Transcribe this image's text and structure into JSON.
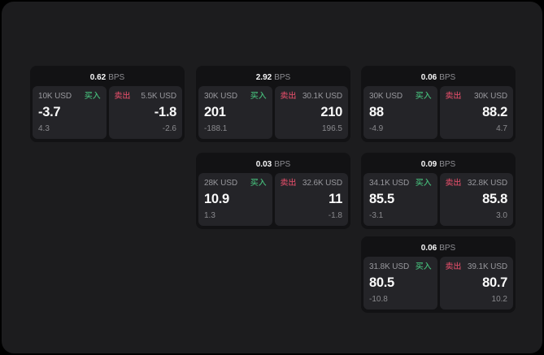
{
  "labels": {
    "bps": "BPS",
    "buy": "买入",
    "sell": "卖出"
  },
  "colors": {
    "buy_green": "#45b878",
    "sell_red": "#d04a63"
  },
  "cards": [
    {
      "col": 0,
      "row": 0,
      "bps": "0.62",
      "buy": {
        "amount": "10K USD",
        "price": "-3.7",
        "delta": "4.3"
      },
      "sell": {
        "amount": "5.5K USD",
        "price": "-1.8",
        "delta": "-2.6"
      }
    },
    {
      "col": 1,
      "row": 0,
      "bps": "2.92",
      "buy": {
        "amount": "30K USD",
        "price": "201",
        "delta": "-188.1"
      },
      "sell": {
        "amount": "30.1K USD",
        "price": "210",
        "delta": "196.5"
      }
    },
    {
      "col": 2,
      "row": 0,
      "bps": "0.06",
      "buy": {
        "amount": "30K USD",
        "price": "88",
        "delta": "-4.9"
      },
      "sell": {
        "amount": "30K USD",
        "price": "88.2",
        "delta": "4.7"
      }
    },
    {
      "col": 1,
      "row": 1,
      "bps": "0.03",
      "buy": {
        "amount": "28K USD",
        "price": "10.9",
        "delta": "1.3"
      },
      "sell": {
        "amount": "32.6K USD",
        "price": "11",
        "delta": "-1.8"
      }
    },
    {
      "col": 2,
      "row": 1,
      "bps": "0.09",
      "buy": {
        "amount": "34.1K USD",
        "price": "85.5",
        "delta": "-3.1"
      },
      "sell": {
        "amount": "32.8K USD",
        "price": "85.8",
        "delta": "3.0"
      }
    },
    {
      "col": 2,
      "row": 2,
      "bps": "0.06",
      "buy": {
        "amount": "31.8K USD",
        "price": "80.5",
        "delta": "-10.8"
      },
      "sell": {
        "amount": "39.1K USD",
        "price": "80.7",
        "delta": "10.2"
      }
    }
  ]
}
